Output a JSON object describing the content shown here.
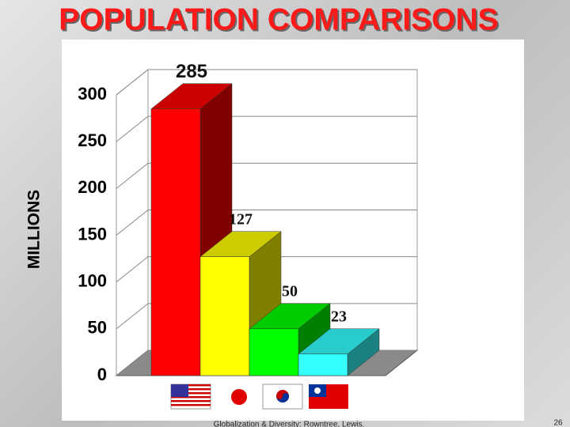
{
  "chart_data": {
    "type": "bar3d",
    "title": "POPULATION COMPARISONS",
    "y_label": "MILLIONS",
    "categories": [
      null,
      null,
      null,
      null
    ],
    "values": [
      285,
      127,
      50,
      23
    ],
    "colors": [
      "#ff0000",
      "#ffff00",
      "#00ff00",
      "#33ffff"
    ],
    "ylim": [
      0,
      300
    ],
    "yticks": [
      0,
      50,
      100,
      150,
      200,
      250,
      300
    ],
    "grid": true
  },
  "footer": {
    "text": "Globalization & Diversity: Rowntree, Lewis.",
    "page": "26"
  }
}
